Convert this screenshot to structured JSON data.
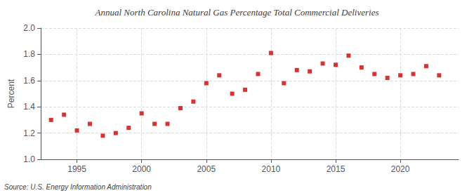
{
  "chart_data": {
    "type": "scatter",
    "title": "Annual North Carolina Natural Gas Percentage Total Commercial Deliveries",
    "ylabel": "Percent",
    "annotations": [
      "Source: U.S. Energy Information Administration"
    ],
    "x": [
      1993,
      1994,
      1995,
      1996,
      1997,
      1998,
      1999,
      2000,
      2001,
      2002,
      2003,
      2004,
      2005,
      2006,
      2007,
      2008,
      2009,
      2010,
      2011,
      2012,
      2013,
      2014,
      2015,
      2016,
      2017,
      2018,
      2019,
      2020,
      2021,
      2022,
      2023
    ],
    "values": [
      1.3,
      1.34,
      1.22,
      1.27,
      1.18,
      1.2,
      1.24,
      1.35,
      1.27,
      1.27,
      1.39,
      1.44,
      1.58,
      1.64,
      1.5,
      1.53,
      1.65,
      1.81,
      1.58,
      1.68,
      1.67,
      1.73,
      1.72,
      1.79,
      1.7,
      1.65,
      1.62,
      1.64,
      1.65,
      1.71,
      1.64
    ],
    "color": "#cc0000",
    "marker": "square",
    "xlim": [
      1992.2,
      2024.5
    ],
    "xticks": [
      1995,
      2000,
      2005,
      2010,
      2015,
      2020
    ],
    "ylim": [
      1.0,
      2.0
    ],
    "yticks": [
      {
        "value": 1.0,
        "label": "1.0"
      },
      1.2,
      1.4,
      1.6,
      1.8,
      {
        "value": 2.0,
        "label": "2.0"
      }
    ],
    "grid": true
  }
}
